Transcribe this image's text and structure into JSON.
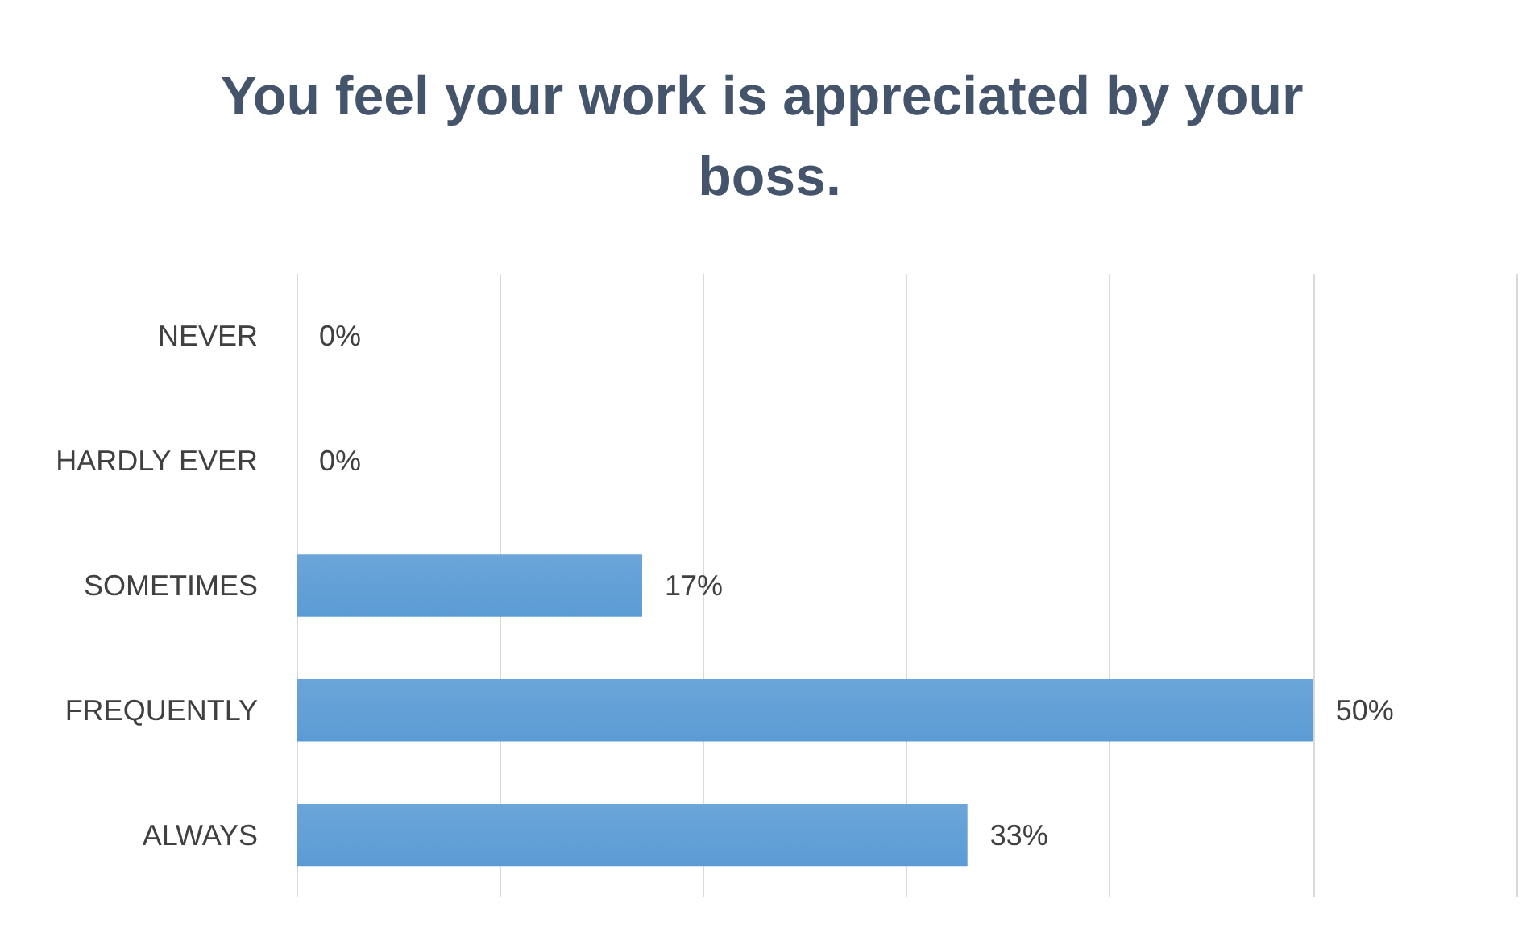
{
  "chart_data": {
    "type": "bar",
    "orientation": "horizontal",
    "title": "You feel your work is appreciated by your boss.",
    "categories": [
      "NEVER",
      "HARDLY EVER",
      "SOMETIMES",
      "FREQUENTLY",
      "ALWAYS"
    ],
    "values": [
      0,
      0,
      17,
      50,
      33
    ],
    "value_labels": [
      "0%",
      "0%",
      "17%",
      "50%",
      "33%"
    ],
    "color": "#5b9bd5",
    "xlim": [
      0,
      60
    ],
    "xticks": [
      {
        "value": 0,
        "label": null
      },
      {
        "value": 10,
        "label": null
      },
      {
        "value": 20,
        "label": null
      },
      {
        "value": 30,
        "label": null
      },
      {
        "value": 40,
        "label": null
      },
      {
        "value": 50,
        "label": null
      },
      {
        "value": 60,
        "label": null
      }
    ],
    "grid": "x",
    "tick_labels": "y"
  }
}
